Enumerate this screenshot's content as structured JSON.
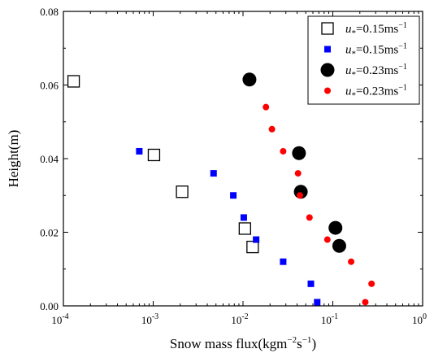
{
  "chart_data": {
    "type": "scatter",
    "xscale": "log",
    "xlim": [
      0.0001,
      1
    ],
    "ylim": [
      0,
      0.08
    ],
    "xlabel": "Snow mass flux(kgm−2s−1)",
    "ylabel": "Height(m)",
    "x_tick_labels": [
      {
        "base": "10",
        "exp": "-4"
      },
      {
        "base": "10",
        "exp": "-3"
      },
      {
        "base": "10",
        "exp": "-2"
      },
      {
        "base": "10",
        "exp": "-1"
      },
      {
        "base": "10",
        "exp": "0"
      }
    ],
    "y_tick_labels": [
      "0.00",
      "0.02",
      "0.04",
      "0.06",
      "0.08"
    ],
    "legend_position": "top-right",
    "series": [
      {
        "name": "u*=0.15ms−1",
        "marker": "open-square-large",
        "color": "#000000",
        "points": [
          {
            "x": 0.00013,
            "y": 0.061
          },
          {
            "x": 0.00102,
            "y": 0.041
          },
          {
            "x": 0.0021,
            "y": 0.031
          },
          {
            "x": 0.0105,
            "y": 0.021
          },
          {
            "x": 0.0128,
            "y": 0.016
          }
        ]
      },
      {
        "name": "u*=0.15ms−1",
        "marker": "filled-square-small",
        "color": "#0000ff",
        "points": [
          {
            "x": 0.0007,
            "y": 0.042
          },
          {
            "x": 0.0047,
            "y": 0.036
          },
          {
            "x": 0.0078,
            "y": 0.03
          },
          {
            "x": 0.0102,
            "y": 0.024
          },
          {
            "x": 0.014,
            "y": 0.018
          },
          {
            "x": 0.028,
            "y": 0.012
          },
          {
            "x": 0.057,
            "y": 0.006
          },
          {
            "x": 0.067,
            "y": 0.001
          }
        ]
      },
      {
        "name": "u*=0.23ms−1",
        "marker": "filled-circle-large",
        "color": "#000000",
        "points": [
          {
            "x": 0.0118,
            "y": 0.0615
          },
          {
            "x": 0.042,
            "y": 0.0415
          },
          {
            "x": 0.044,
            "y": 0.031
          },
          {
            "x": 0.107,
            "y": 0.0212
          },
          {
            "x": 0.118,
            "y": 0.0163
          }
        ]
      },
      {
        "name": "u*=0.23ms−1",
        "marker": "filled-circle-small",
        "color": "#ff0000",
        "points": [
          {
            "x": 0.018,
            "y": 0.054
          },
          {
            "x": 0.021,
            "y": 0.048
          },
          {
            "x": 0.028,
            "y": 0.042
          },
          {
            "x": 0.041,
            "y": 0.036
          },
          {
            "x": 0.043,
            "y": 0.03
          },
          {
            "x": 0.055,
            "y": 0.024
          },
          {
            "x": 0.087,
            "y": 0.018
          },
          {
            "x": 0.16,
            "y": 0.012
          },
          {
            "x": 0.27,
            "y": 0.006
          },
          {
            "x": 0.23,
            "y": 0.001
          }
        ]
      }
    ],
    "legend_entries": [
      {
        "var": "u",
        "sub": "*",
        "value": "=0.15ms",
        "exp": "−1"
      },
      {
        "var": "u",
        "sub": "*",
        "value": "=0.15ms",
        "exp": "−1"
      },
      {
        "var": "u",
        "sub": "*",
        "value": "=0.23ms",
        "exp": "−1"
      },
      {
        "var": "u",
        "sub": "*",
        "value": "=0.23ms",
        "exp": "−1"
      }
    ]
  }
}
